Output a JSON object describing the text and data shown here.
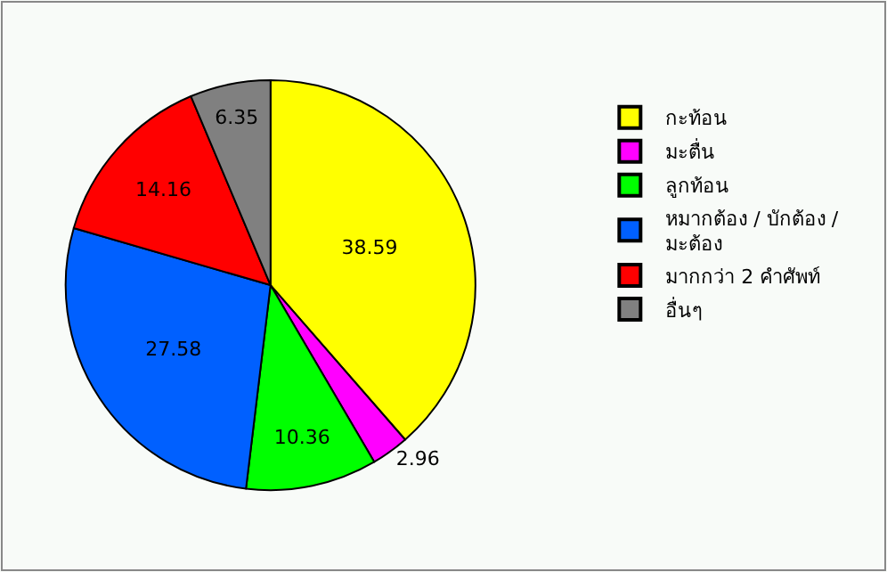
{
  "chart_data": {
    "type": "pie",
    "categories": [
      "กะท้อน",
      "มะตื่น",
      "ลูกท้อน",
      "หมากต้อง / บักต้อง / มะต้อง",
      "มากกว่า 2 คำศัพท์",
      "อื่นๆ"
    ],
    "values": [
      38.59,
      2.96,
      10.36,
      27.58,
      14.16,
      6.35
    ],
    "colors": [
      "#ffff00",
      "#ff00ff",
      "#00ff00",
      "#0060ff",
      "#ff0000",
      "#808080"
    ],
    "data_labels": true,
    "legend": "right"
  }
}
